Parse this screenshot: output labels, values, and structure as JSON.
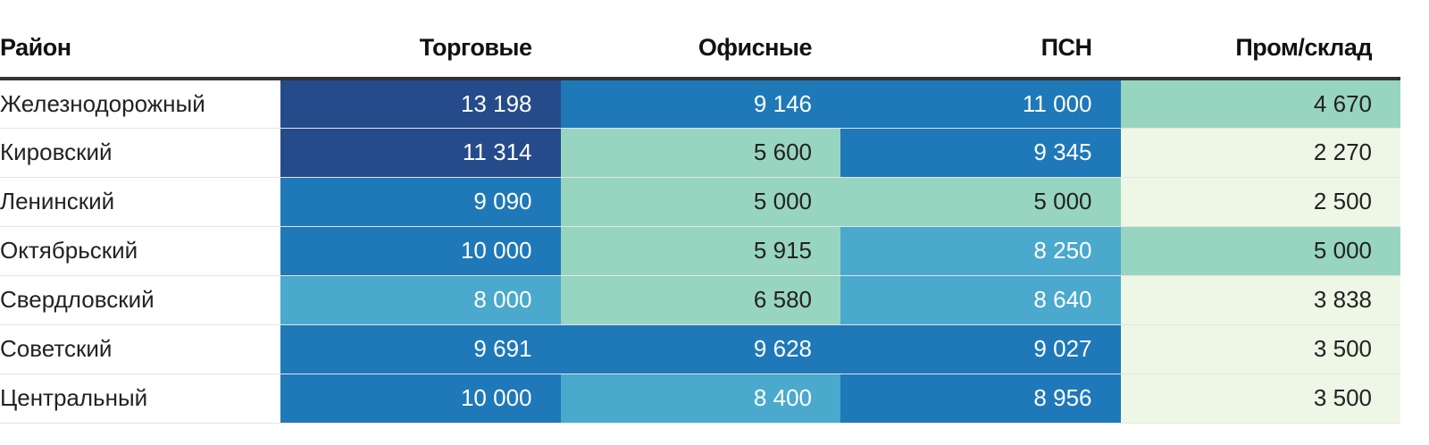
{
  "chart_data": {
    "type": "heatmap",
    "row_header": "Район",
    "columns": [
      "Торговые",
      "Офисные",
      "ПСН",
      "Пром/склад"
    ],
    "rows": [
      {
        "name": "Железнодорожный",
        "values": [
          13198,
          9146,
          11000,
          4670
        ],
        "labels": [
          "13 198",
          "9 146",
          "11 000",
          "4 670"
        ]
      },
      {
        "name": "Кировский",
        "values": [
          11314,
          5600,
          9345,
          2270
        ],
        "labels": [
          "11 314",
          "5 600",
          "9 345",
          "2 270"
        ]
      },
      {
        "name": "Ленинский",
        "values": [
          9090,
          5000,
          5000,
          2500
        ],
        "labels": [
          "9 090",
          "5 000",
          "5 000",
          "2 500"
        ]
      },
      {
        "name": "Октябрьский",
        "values": [
          10000,
          5915,
          8250,
          5000
        ],
        "labels": [
          "10 000",
          "5 915",
          "8 250",
          "5 000"
        ]
      },
      {
        "name": "Свердловский",
        "values": [
          8000,
          6580,
          8640,
          3838
        ],
        "labels": [
          "8 000",
          "6 580",
          "8 640",
          "3 838"
        ]
      },
      {
        "name": "Советский",
        "values": [
          9691,
          9628,
          9027,
          3500
        ],
        "labels": [
          "9 691",
          "9 628",
          "9 027",
          "3 500"
        ]
      },
      {
        "name": "Центральный",
        "values": [
          10000,
          8400,
          8956,
          3500
        ],
        "labels": [
          "10 000",
          "8 400",
          "8 956",
          "3 500"
        ]
      }
    ],
    "color_scale": [
      {
        "min": 0,
        "max": 4000,
        "color": "#eef7e6",
        "text": "#222222"
      },
      {
        "min": 4000,
        "max": 7000,
        "color": "#98d5c1",
        "text": "#222222"
      },
      {
        "min": 7000,
        "max": 8900,
        "color": "#4aa9cc",
        "text": "#ffffff"
      },
      {
        "min": 8900,
        "max": 11100,
        "color": "#1f78b8",
        "text": "#ffffff"
      },
      {
        "min": 11100,
        "max": 1000000,
        "color": "#264b8b",
        "text": "#ffffff"
      }
    ]
  }
}
